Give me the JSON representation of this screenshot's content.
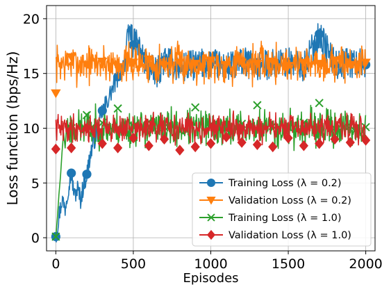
{
  "chart_data": {
    "type": "line",
    "xlabel": "Episodes",
    "ylabel": "Loss function (bps/Hz)",
    "xlim": [
      -60,
      2060
    ],
    "ylim": [
      -1.2,
      21.2
    ],
    "xticks": [
      0,
      500,
      1000,
      1500,
      2000
    ],
    "yticks": [
      0,
      5,
      10,
      15,
      20
    ],
    "grid": true,
    "legend_position": "lower-right",
    "series": [
      {
        "name": "Training Loss (λ = 0.2)",
        "color": "#1f77b4",
        "marker": "circle",
        "points": [
          [
            0,
            0.1
          ],
          [
            20,
            2.0
          ],
          [
            40,
            3.5
          ],
          [
            60,
            2.7
          ],
          [
            80,
            4.6
          ],
          [
            100,
            5.9
          ],
          [
            120,
            3.8
          ],
          [
            140,
            4.5
          ],
          [
            160,
            3.5
          ],
          [
            180,
            4.9
          ],
          [
            200,
            5.8
          ],
          [
            220,
            7.4
          ],
          [
            240,
            8.6
          ],
          [
            260,
            9.4
          ],
          [
            280,
            10.3
          ],
          [
            300,
            11.6
          ],
          [
            330,
            12.4
          ],
          [
            360,
            13.4
          ],
          [
            400,
            14.7
          ],
          [
            440,
            16.0
          ],
          [
            480,
            19.1
          ],
          [
            500,
            17.6
          ],
          [
            520,
            17.8
          ],
          [
            560,
            16.5
          ],
          [
            600,
            15.5
          ],
          [
            650,
            15.0
          ],
          [
            700,
            16.2
          ],
          [
            800,
            15.5
          ],
          [
            900,
            15.8
          ],
          [
            1000,
            16.0
          ],
          [
            1100,
            15.5
          ],
          [
            1200,
            16.0
          ],
          [
            1300,
            15.7
          ],
          [
            1400,
            15.9
          ],
          [
            1500,
            16.0
          ],
          [
            1600,
            15.6
          ],
          [
            1700,
            18.6
          ],
          [
            1800,
            15.8
          ],
          [
            1900,
            16.0
          ],
          [
            2000,
            15.8
          ]
        ],
        "markers": [
          [
            0,
            0.1
          ],
          [
            100,
            5.9
          ],
          [
            200,
            5.8
          ],
          [
            300,
            11.6
          ],
          [
            400,
            14.7
          ],
          [
            500,
            17.6
          ],
          [
            600,
            15.5
          ],
          [
            700,
            16.2
          ],
          [
            800,
            15.5
          ],
          [
            900,
            15.8
          ],
          [
            1000,
            16.0
          ],
          [
            1100,
            15.5
          ],
          [
            1200,
            16.0
          ],
          [
            1300,
            15.7
          ],
          [
            1400,
            15.9
          ],
          [
            1500,
            16.0
          ],
          [
            1600,
            15.6
          ],
          [
            1700,
            18.6
          ],
          [
            1800,
            15.8
          ],
          [
            1900,
            16.0
          ],
          [
            2000,
            15.8
          ]
        ]
      },
      {
        "name": "Validation Loss (λ = 0.2)",
        "color": "#ff7f0e",
        "marker": "triangle-down",
        "center": 15.9,
        "spread": 1.7,
        "seed": 7,
        "markers": [
          [
            0,
            13.2
          ],
          [
            100,
            16.5
          ],
          [
            200,
            15.8
          ],
          [
            300,
            16.1
          ],
          [
            400,
            15.6
          ],
          [
            500,
            16.0
          ],
          [
            600,
            16.3
          ],
          [
            700,
            15.7
          ],
          [
            800,
            16.0
          ],
          [
            900,
            15.9
          ],
          [
            1000,
            16.2
          ],
          [
            1100,
            15.8
          ],
          [
            1200,
            16.0
          ],
          [
            1300,
            15.9
          ],
          [
            1400,
            16.1
          ],
          [
            1500,
            15.7
          ],
          [
            1600,
            16.0
          ],
          [
            1700,
            15.9
          ],
          [
            1800,
            16.2
          ],
          [
            1900,
            15.8
          ],
          [
            2000,
            16.0
          ]
        ]
      },
      {
        "name": "Training Loss (λ = 1.0)",
        "color": "#2ca02c",
        "marker": "x",
        "points": [
          [
            0,
            0.1
          ],
          [
            10,
            1.8
          ],
          [
            20,
            3.9
          ],
          [
            30,
            5.6
          ],
          [
            40,
            7.8
          ],
          [
            50,
            9.6
          ],
          [
            60,
            8.2
          ],
          [
            70,
            10.4
          ]
        ],
        "center": 10.0,
        "spread": 1.6,
        "seed": 23,
        "markers": [
          [
            0,
            0.1
          ],
          [
            100,
            10.0
          ],
          [
            200,
            11.2
          ],
          [
            300,
            10.5
          ],
          [
            400,
            11.8
          ],
          [
            500,
            10.2
          ],
          [
            600,
            10.6
          ],
          [
            700,
            10.1
          ],
          [
            800,
            9.8
          ],
          [
            900,
            11.9
          ],
          [
            1000,
            10.3
          ],
          [
            1100,
            10.0
          ],
          [
            1200,
            10.4
          ],
          [
            1300,
            12.1
          ],
          [
            1400,
            10.2
          ],
          [
            1500,
            10.1
          ],
          [
            1600,
            10.5
          ],
          [
            1700,
            12.3
          ],
          [
            1800,
            10.0
          ],
          [
            1900,
            10.2
          ],
          [
            2000,
            10.1
          ]
        ]
      },
      {
        "name": "Validation Loss (λ = 1.0)",
        "color": "#d62728",
        "marker": "diamond",
        "center": 10.0,
        "spread": 1.2,
        "seed": 41,
        "markers": [
          [
            0,
            8.1
          ],
          [
            100,
            8.2
          ],
          [
            200,
            10.0
          ],
          [
            300,
            8.6
          ],
          [
            400,
            8.2
          ],
          [
            500,
            9.1
          ],
          [
            600,
            8.4
          ],
          [
            700,
            9.0
          ],
          [
            800,
            8.0
          ],
          [
            900,
            8.3
          ],
          [
            1000,
            8.6
          ],
          [
            1100,
            9.2
          ],
          [
            1200,
            8.7
          ],
          [
            1300,
            8.5
          ],
          [
            1400,
            8.3
          ],
          [
            1500,
            9.1
          ],
          [
            1600,
            8.4
          ],
          [
            1700,
            8.6
          ],
          [
            1800,
            9.0
          ],
          [
            1900,
            8.7
          ],
          [
            2000,
            8.9
          ]
        ]
      }
    ]
  }
}
